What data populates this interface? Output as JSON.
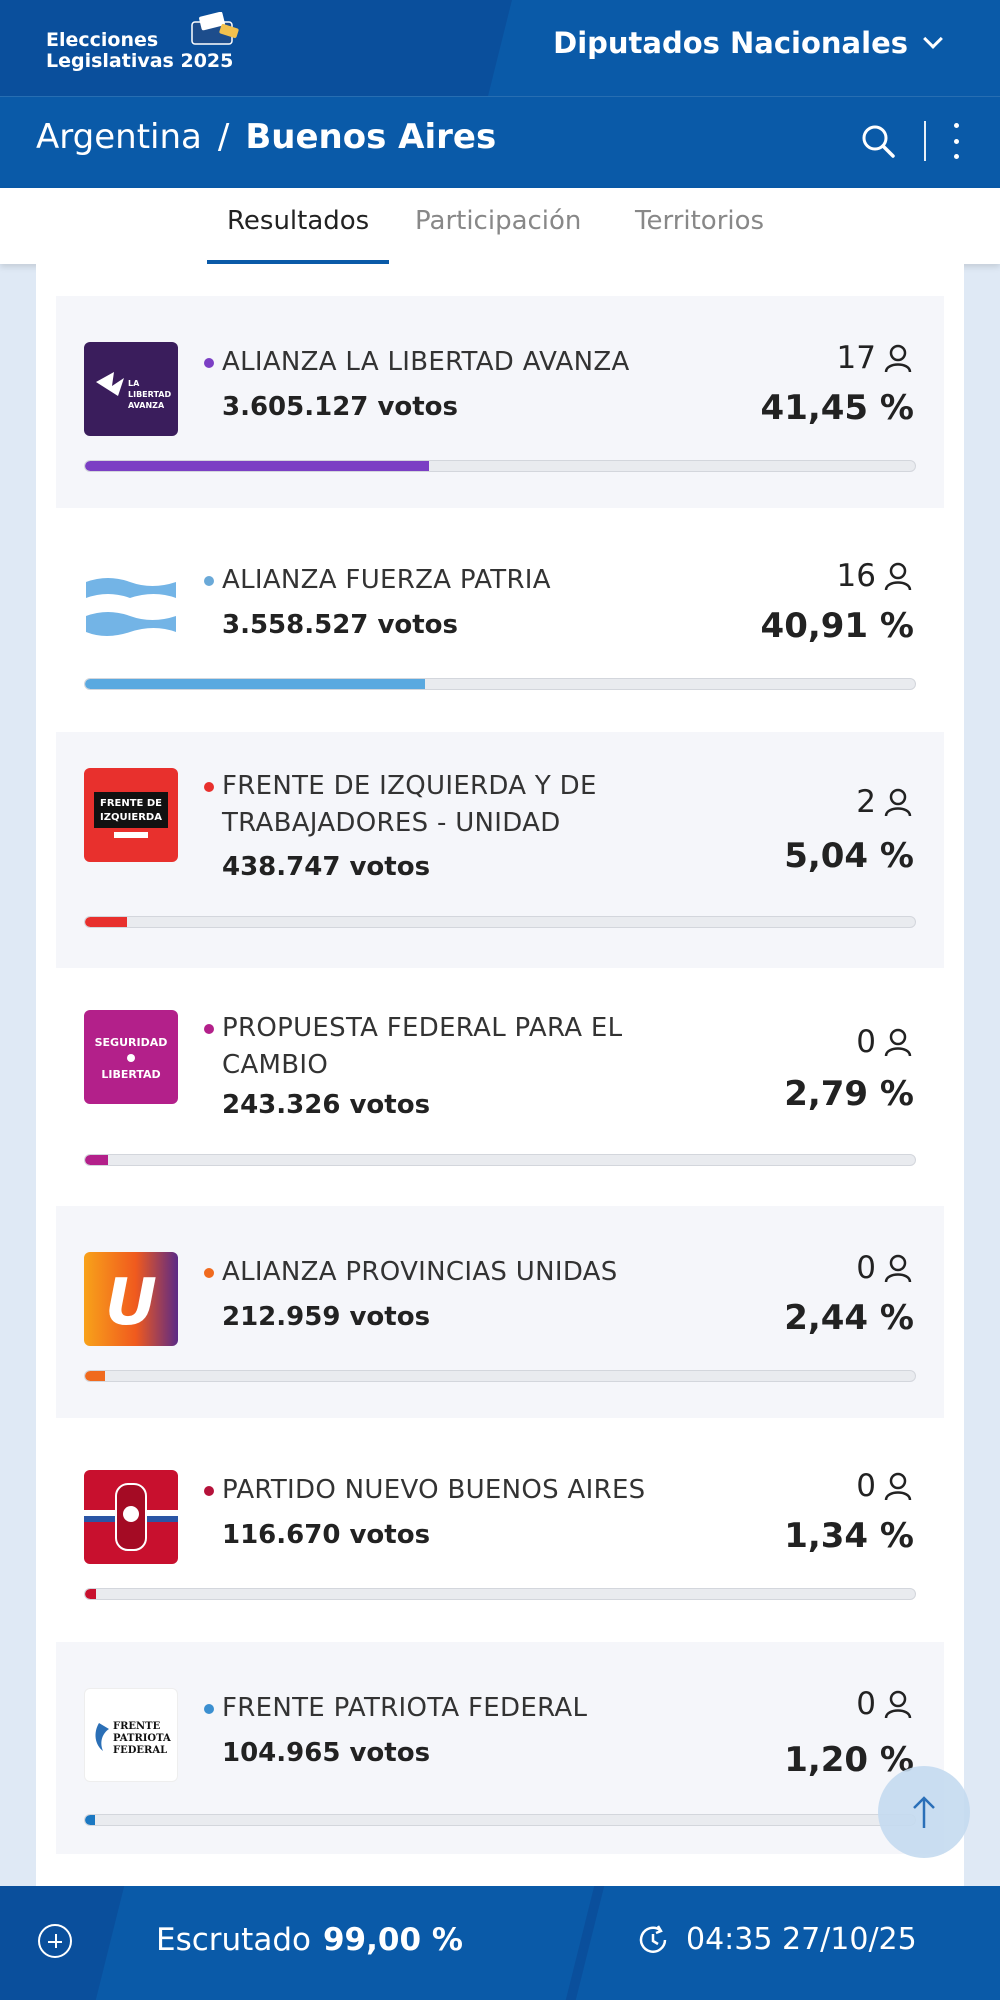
{
  "header": {
    "logo_line1": "Elecciones",
    "logo_line2": "Legislativas 2025",
    "chamber": "Diputados Nacionales",
    "breadcrumb_country": "Argentina",
    "breadcrumb_sep": "/",
    "breadcrumb_province": "Buenos Aires"
  },
  "tabs": [
    {
      "label": "Resultados",
      "active": true
    },
    {
      "label": "Participación",
      "active": false
    },
    {
      "label": "Territorios",
      "active": false
    }
  ],
  "parties": [
    {
      "name": "ALIANZA LA LIBERTAD AVANZA",
      "votes": "3.605.127 votos",
      "seats": "17",
      "pct": "41,45 %",
      "pct_value": 41.45,
      "color": "#7b3fc4",
      "dot": "#7b3fc4",
      "logo": "lla-logo",
      "logo_text": "LA LIBERTAD AVANZA"
    },
    {
      "name": "ALIANZA FUERZA PATRIA",
      "votes": "3.558.527 votos",
      "seats": "16",
      "pct": "40,91 %",
      "pct_value": 40.91,
      "color": "#5aa9e0",
      "dot": "#6aa9d8",
      "logo": "flag-logo",
      "logo_text": ""
    },
    {
      "name": "FRENTE DE IZQUIERDA Y DE TRABAJADORES - UNIDAD",
      "votes": "438.747 votos",
      "seats": "2",
      "pct": "5,04 %",
      "pct_value": 5.04,
      "color": "#e8302d",
      "dot": "#e8302d",
      "logo": "fit-logo",
      "logo_text": "FRENTE DE IZQUIERDA"
    },
    {
      "name": "PROPUESTA FEDERAL PARA EL CAMBIO",
      "votes": "243.326 votos",
      "seats": "0",
      "pct": "2,79 %",
      "pct_value": 2.79,
      "color": "#b3208a",
      "dot": "#b3208a",
      "logo": "seguridad-logo",
      "logo_text": "SEGURIDAD LIBERTAD"
    },
    {
      "name": "ALIANZA PROVINCIAS UNIDAS",
      "votes": "212.959 votos",
      "seats": "0",
      "pct": "2,44 %",
      "pct_value": 2.44,
      "color": "#f06a1e",
      "dot": "#f06a1e",
      "logo": "u-logo",
      "logo_text": "U"
    },
    {
      "name": "PARTIDO NUEVO BUENOS AIRES",
      "votes": "116.670 votos",
      "seats": "0",
      "pct": "1,34 %",
      "pct_value": 1.34,
      "color": "#c8102e",
      "dot": "#b5123a",
      "logo": "pnba-logo",
      "logo_text": ""
    },
    {
      "name": "FRENTE PATRIOTA FEDERAL",
      "votes": "104.965 votos",
      "seats": "0",
      "pct": "1,20 %",
      "pct_value": 1.2,
      "color": "#1b78c2",
      "dot": "#3b8fd0",
      "logo": "fpf-logo",
      "logo_text": "FRENTE PATRIOTA FEDERAL"
    }
  ],
  "footer": {
    "escrutado_label": "Escrutado",
    "escrutado_value": "99,00 %",
    "timestamp": "04:35 27/10/25"
  }
}
